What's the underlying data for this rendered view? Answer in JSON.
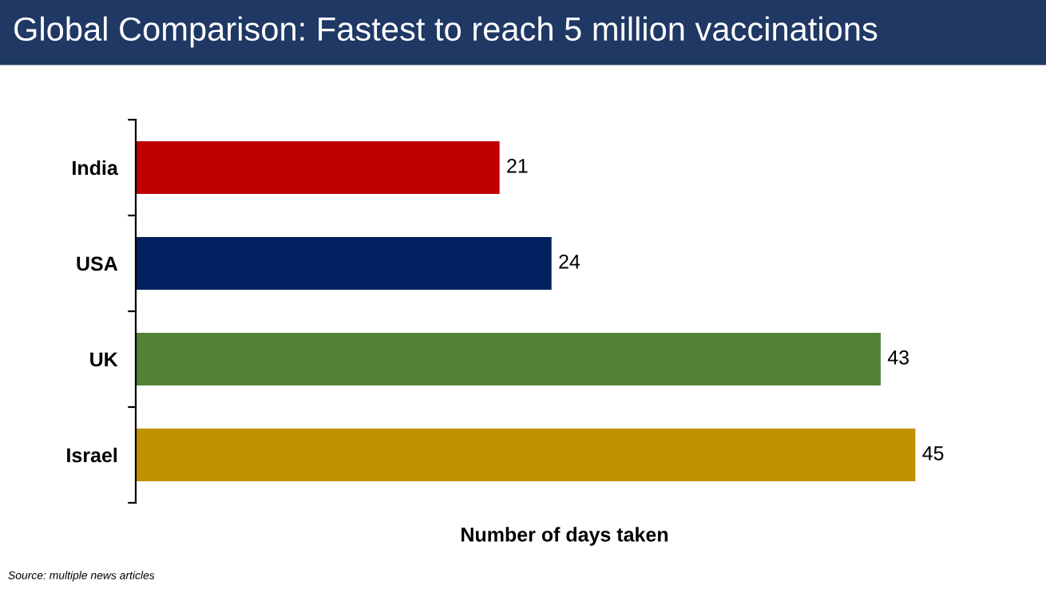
{
  "chart_data": {
    "type": "bar",
    "orientation": "horizontal",
    "title": "Global Comparison: Fastest to reach 5 million vaccinations",
    "categories": [
      "India",
      "USA",
      "UK",
      "Israel"
    ],
    "values": [
      21,
      24,
      43,
      45
    ],
    "colors": [
      "#c00000",
      "#002060",
      "#548235",
      "#bf9000"
    ],
    "xlabel": "Number of days taken",
    "data_labels": true,
    "grid": false,
    "annotations": [
      "Source: multiple news articles"
    ]
  }
}
